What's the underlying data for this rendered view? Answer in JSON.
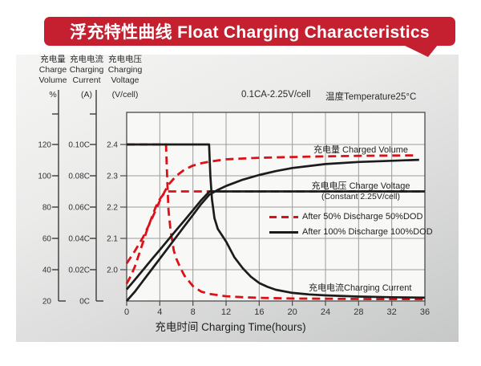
{
  "colors": {
    "banner_bg": "#c52030",
    "banner_text": "#ffffff",
    "curve_red": "#dc1118",
    "curve_black": "#1c1c1c",
    "grid": "#9b9b9b",
    "plot_border": "#4a4a4a",
    "plot_bg": "#f8f8f7",
    "axis_line": "#3a3a3a",
    "tick_text": "#333333"
  },
  "banner": {
    "title": "浮充特性曲线 Float Charging Characteristics"
  },
  "axis_headers": [
    {
      "zh": "充电量",
      "en_line1": "Charge",
      "en_line2": "Volume",
      "unit": "%"
    },
    {
      "zh": "充电电流",
      "en_line1": "Charging",
      "en_line2": "Current",
      "unit": "(A)"
    },
    {
      "zh": "充电电压",
      "en_line1": "Charging",
      "en_line2": "Voltage",
      "unit": "(V/cell)"
    }
  ],
  "condition_note": {
    "setting": "0.1CA-2.25V/cell",
    "temperature": "温度Temperature25°C"
  },
  "annotations": {
    "charged_volume": "充电量 Charged Volume",
    "charge_voltage": "充电电压 Charge Voltage",
    "constant_note": "(Constant 2.25V/cell)",
    "charging_current": "充电电流Charging Current"
  },
  "legend": [
    {
      "label": "After 50% Discharge 50%DOD",
      "style": "dashed",
      "color": "#dc1118"
    },
    {
      "label": "After 100%  Discharge 100%DOD",
      "style": "solid",
      "color": "#1c1c1c"
    }
  ],
  "chart_data": {
    "type": "line",
    "title": "浮充特性曲线 Float Charging Characteristics",
    "condition": "0.1CA-2.25V/cell, Temperature 25°C",
    "grid": true,
    "x": {
      "label": "充电时间 Charging Time(hours)",
      "min": 0,
      "max": 36,
      "ticks": [
        0,
        4,
        8,
        12,
        16,
        20,
        24,
        28,
        32,
        36
      ]
    },
    "axes": {
      "volume": {
        "name": "充电量 Charge Volume",
        "unit": "%",
        "min": 20,
        "max": 120,
        "tick_labels": [
          "120",
          "100",
          "80",
          "60",
          "40",
          "20"
        ],
        "tick_values": [
          120,
          100,
          80,
          60,
          40,
          20
        ]
      },
      "current": {
        "name": "充电电流 Charging Current",
        "unit": "A",
        "min": 0,
        "max": 0.1,
        "tick_labels": [
          "0.10C",
          "0.08C",
          "0.06C",
          "0.04C",
          "0.02C",
          "0C"
        ],
        "tick_values": [
          0.1,
          0.08,
          0.06,
          0.04,
          0.02,
          0
        ]
      },
      "voltage": {
        "name": "充电电压 Charging Voltage",
        "unit": "V/cell",
        "min": 1.9,
        "max": 2.4,
        "tick_labels": [
          "2.4",
          "2.3",
          "2.2",
          "2.1",
          "2.0"
        ],
        "tick_values": [
          2.4,
          2.3,
          2.2,
          2.1,
          2.0
        ]
      }
    },
    "series": [
      {
        "name": "charged-volume-50dod",
        "legend": "After 50% Discharge 50%DOD",
        "axis": "volume",
        "color": "#dc1118",
        "dash": true,
        "points": [
          [
            0,
            44
          ],
          [
            1,
            52
          ],
          [
            2,
            61
          ],
          [
            3,
            72
          ],
          [
            4,
            84
          ],
          [
            4.5,
            89
          ],
          [
            5,
            94
          ],
          [
            5.5,
            97
          ],
          [
            6,
            100
          ],
          [
            7,
            104
          ],
          [
            8,
            106.5
          ],
          [
            9,
            108
          ],
          [
            10,
            109
          ],
          [
            12,
            110.5
          ],
          [
            14,
            111
          ],
          [
            16,
            111.5
          ],
          [
            20,
            112
          ],
          [
            24,
            112.4
          ],
          [
            28,
            112.7
          ],
          [
            32,
            112.9
          ],
          [
            34.7,
            113
          ]
        ]
      },
      {
        "name": "charge-voltage-50dod",
        "legend": "After 50% Discharge 50%DOD",
        "axis": "voltage",
        "color": "#dc1118",
        "dash": true,
        "points": [
          [
            0,
            1.955
          ],
          [
            0.5,
            1.98
          ],
          [
            1,
            2.01
          ],
          [
            1.5,
            2.05
          ],
          [
            2,
            2.09
          ],
          [
            2.5,
            2.13
          ],
          [
            3,
            2.165
          ],
          [
            3.5,
            2.2
          ],
          [
            4,
            2.225
          ],
          [
            4.5,
            2.243
          ],
          [
            5,
            2.25
          ],
          [
            36,
            2.25
          ]
        ]
      },
      {
        "name": "charging-current-50dod",
        "legend": "After 50% Discharge 50%DOD",
        "axis": "current",
        "color": "#dc1118",
        "dash": true,
        "points": [
          [
            0,
            0.1
          ],
          [
            4.75,
            0.1
          ],
          [
            4.85,
            0.085
          ],
          [
            4.95,
            0.07
          ],
          [
            5.05,
            0.058
          ],
          [
            5.3,
            0.045
          ],
          [
            5.7,
            0.032
          ],
          [
            6,
            0.027
          ],
          [
            6.5,
            0.021
          ],
          [
            7,
            0.016
          ],
          [
            8,
            0.0095
          ],
          [
            9,
            0.006
          ],
          [
            10,
            0.0045
          ],
          [
            12,
            0.003
          ],
          [
            14,
            0.0024
          ],
          [
            16,
            0.002
          ],
          [
            20,
            0.0016
          ],
          [
            28,
            0.0013
          ],
          [
            36,
            0.0012
          ]
        ]
      },
      {
        "name": "charged-volume-100dod",
        "legend": "After 100% Discharge 100%DOD",
        "axis": "volume",
        "color": "#1c1c1c",
        "dash": false,
        "points": [
          [
            0,
            20
          ],
          [
            1,
            26
          ],
          [
            2,
            33
          ],
          [
            3,
            40
          ],
          [
            4,
            47
          ],
          [
            5,
            54
          ],
          [
            6,
            61
          ],
          [
            7,
            68
          ],
          [
            8,
            75
          ],
          [
            9,
            82
          ],
          [
            10,
            88
          ],
          [
            11,
            91
          ],
          [
            12,
            93.5
          ],
          [
            13,
            95.5
          ],
          [
            14,
            97.5
          ],
          [
            16,
            100.5
          ],
          [
            18,
            103
          ],
          [
            20,
            105
          ],
          [
            24,
            107.5
          ],
          [
            28,
            108.8
          ],
          [
            32,
            109.6
          ],
          [
            35.3,
            110.2
          ]
        ]
      },
      {
        "name": "charge-voltage-100dod",
        "legend": "After 100% Discharge 100%DOD",
        "axis": "voltage",
        "color": "#1c1c1c",
        "dash": false,
        "points": [
          [
            0,
            1.937
          ],
          [
            1,
            1.968
          ],
          [
            2,
            2.0
          ],
          [
            3,
            2.032
          ],
          [
            4,
            2.063
          ],
          [
            5,
            2.095
          ],
          [
            6,
            2.127
          ],
          [
            7,
            2.158
          ],
          [
            8,
            2.19
          ],
          [
            9,
            2.222
          ],
          [
            10,
            2.25
          ],
          [
            36,
            2.25
          ]
        ]
      },
      {
        "name": "charging-current-100dod",
        "legend": "After 100% Discharge 100%DOD",
        "axis": "current",
        "color": "#1c1c1c",
        "dash": false,
        "points": [
          [
            0,
            0.1
          ],
          [
            9.95,
            0.1
          ],
          [
            10.1,
            0.08
          ],
          [
            10.3,
            0.065
          ],
          [
            10.6,
            0.053
          ],
          [
            11,
            0.046
          ],
          [
            12,
            0.038
          ],
          [
            13,
            0.028
          ],
          [
            14,
            0.021
          ],
          [
            15,
            0.0155
          ],
          [
            16,
            0.0115
          ],
          [
            17,
            0.009
          ],
          [
            18,
            0.0072
          ],
          [
            20,
            0.0052
          ],
          [
            22,
            0.0042
          ],
          [
            24,
            0.0036
          ],
          [
            28,
            0.0028
          ],
          [
            32,
            0.0024
          ],
          [
            36,
            0.0021
          ]
        ]
      }
    ]
  }
}
